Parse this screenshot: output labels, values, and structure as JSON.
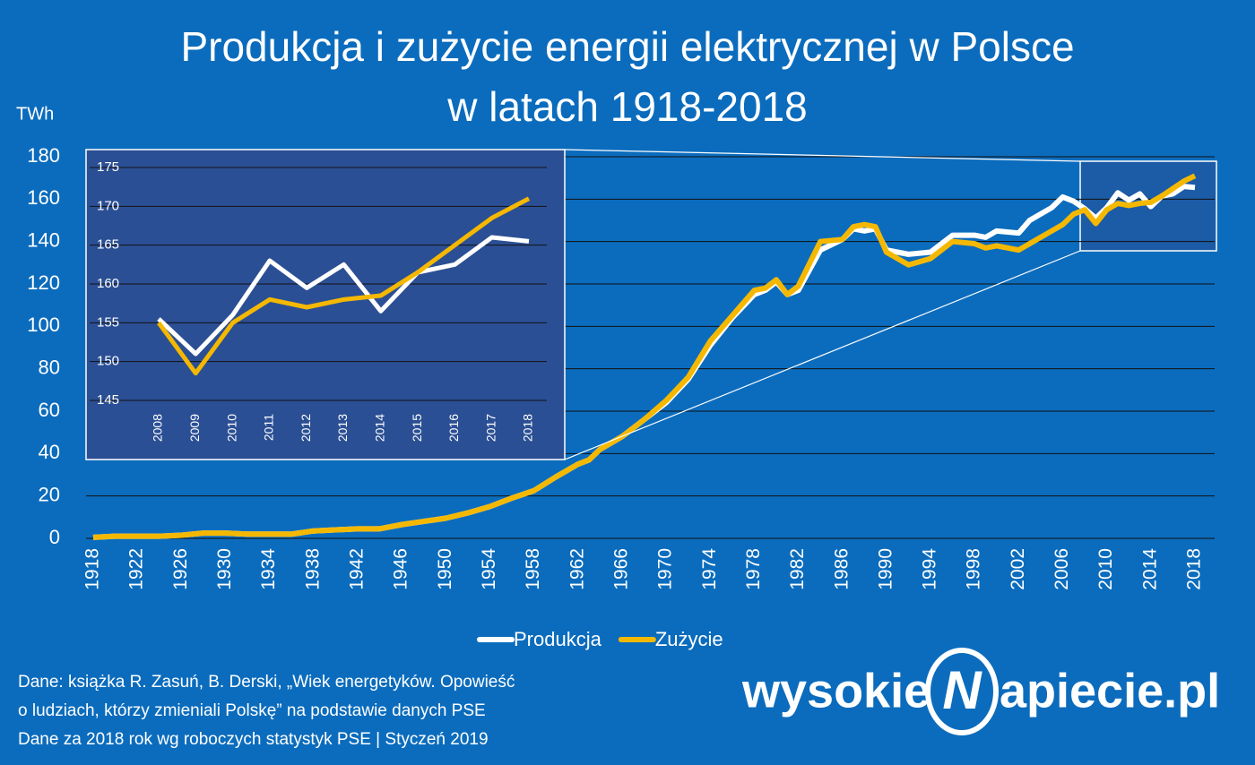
{
  "title": [
    "Produkcja i zużycie energii elektrycznej w Polsce",
    "w latach 1918-2018"
  ],
  "notes": [
    "Dane: książka R. Zasuń, B. Derski, „Wiek energetyków. Opowieść",
    "o ludziach, którzy zmieniali Polskę” na podstawie danych PSE",
    "Dane za 2018 rok wg roboczych statystyk PSE  |  Styczeń 2019"
  ],
  "logo": [
    "wysokie",
    "N",
    "apiecie.pl"
  ],
  "chart_data": [
    {
      "type": "line",
      "y_label": "TWh",
      "legend": "bottom",
      "grid": true,
      "x": [
        1918,
        1920,
        1922,
        1924,
        1926,
        1928,
        1930,
        1932,
        1934,
        1936,
        1938,
        1940,
        1942,
        1944,
        1946,
        1948,
        1950,
        1952,
        1954,
        1956,
        1958,
        1960,
        1962,
        1963,
        1964,
        1966,
        1968,
        1970,
        1972,
        1974,
        1976,
        1978,
        1979,
        1980,
        1981,
        1982,
        1984,
        1986,
        1987,
        1988,
        1989,
        1990,
        1992,
        1994,
        1996,
        1998,
        1999,
        2000,
        2002,
        2003,
        2005,
        2006,
        2007,
        2008,
        2009,
        2010,
        2011,
        2012,
        2013,
        2014,
        2015,
        2016,
        2017,
        2018
      ],
      "series": [
        {
          "name": "Produkcja",
          "color": "#ffffff",
          "values": [
            0.5,
            1,
            1,
            1,
            1.5,
            2.5,
            2.5,
            2,
            2,
            2,
            3.5,
            4,
            4.5,
            4.5,
            6.5,
            8,
            9.5,
            12,
            15,
            19,
            22.5,
            29,
            35,
            37,
            42,
            48,
            56,
            64,
            75,
            91,
            104,
            115,
            117,
            121,
            115,
            117,
            136,
            141,
            146,
            145,
            146,
            136,
            134,
            135,
            143,
            143,
            142,
            145,
            144,
            150,
            156,
            161,
            159,
            155.5,
            151,
            156,
            163,
            159.5,
            162.5,
            156.5,
            161.5,
            162.5,
            166,
            165.5
          ]
        },
        {
          "name": "Zużycie",
          "color": "#f5b800",
          "values": [
            0.5,
            1,
            1,
            1,
            1.5,
            2.5,
            2.5,
            2,
            2,
            2,
            3.5,
            4,
            4.5,
            4.5,
            6.5,
            8,
            9.5,
            12,
            15,
            19,
            22.5,
            29,
            35,
            37,
            42,
            48,
            56,
            65,
            76,
            93,
            105,
            117,
            118,
            122,
            115,
            119,
            140,
            141,
            147,
            148,
            147,
            135,
            129,
            132,
            140,
            139,
            137,
            138,
            136,
            139,
            145,
            148,
            153,
            155,
            148.5,
            155,
            158,
            157,
            158,
            158.5,
            161.5,
            165,
            168.5,
            171
          ]
        }
      ],
      "xlim": [
        1918,
        2018
      ],
      "xticks": [
        1918,
        1922,
        1926,
        1930,
        1934,
        1938,
        1942,
        1946,
        1950,
        1954,
        1958,
        1962,
        1966,
        1970,
        1974,
        1978,
        1982,
        1986,
        1990,
        1994,
        1998,
        2002,
        2006,
        2010,
        2014,
        2018
      ],
      "ylim": [
        0,
        180
      ],
      "yticks": [
        0,
        20,
        40,
        60,
        80,
        100,
        120,
        140,
        160,
        180
      ]
    },
    {
      "type": "line",
      "grid": true,
      "x": [
        2008,
        2009,
        2010,
        2011,
        2012,
        2013,
        2014,
        2015,
        2016,
        2017,
        2018
      ],
      "series": [
        {
          "color": "#ffffff",
          "values": [
            155.5,
            151,
            156,
            163,
            159.5,
            162.5,
            156.5,
            161.5,
            162.5,
            166,
            165.5
          ]
        },
        {
          "color": "#f5b800",
          "values": [
            155,
            148.5,
            155,
            158,
            157,
            158,
            158.5,
            161.5,
            165,
            168.5,
            171
          ]
        }
      ],
      "xlim": [
        2008,
        2018
      ],
      "xticks": [
        2008,
        2009,
        2010,
        2011,
        2012,
        2013,
        2014,
        2015,
        2016,
        2017,
        2018
      ],
      "ylim": [
        145,
        175
      ],
      "yticks": [
        145,
        150,
        155,
        160,
        165,
        170,
        175
      ]
    }
  ]
}
